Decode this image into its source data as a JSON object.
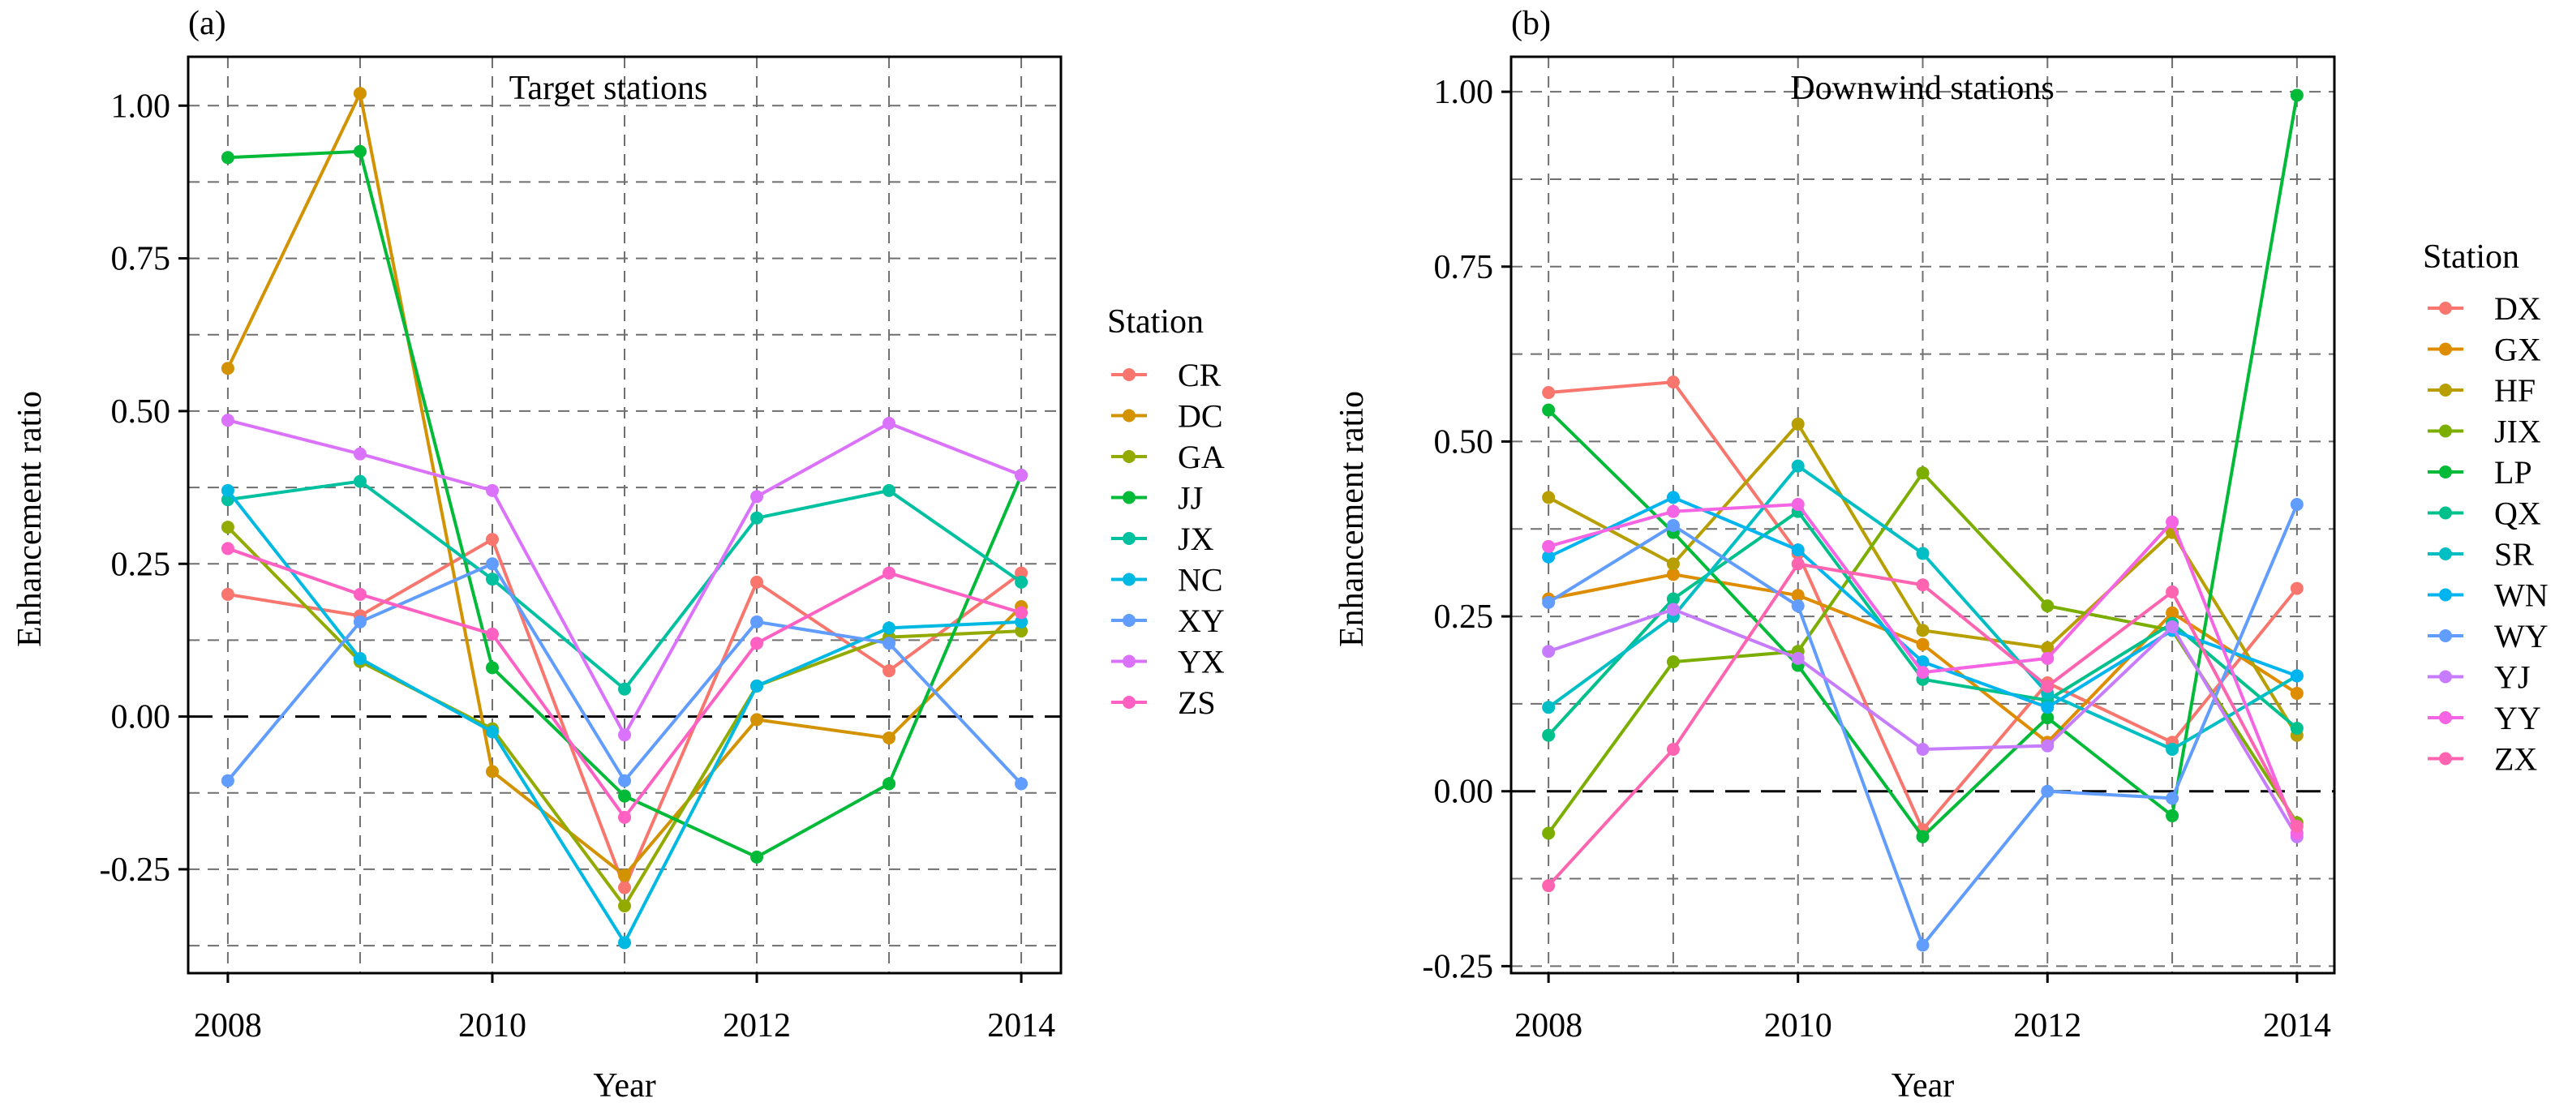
{
  "chart_data": [
    {
      "type": "line",
      "panel_label": "(a)",
      "title": "Target stations",
      "xlabel": "Year",
      "ylabel": "Enhancement ratio",
      "x": [
        2008,
        2009,
        2010,
        2011,
        2012,
        2013,
        2014
      ],
      "x_ticks": [
        "2008",
        "2010",
        "2012",
        "2014"
      ],
      "ylim": [
        -0.42,
        1.08
      ],
      "y_ticks": [
        "-0.25",
        "0.00",
        "0.25",
        "0.50",
        "0.75",
        "1.00"
      ],
      "grid": true,
      "reference_line": 0,
      "legend_title": "Station",
      "legend_position": "right",
      "series": [
        {
          "name": "CR",
          "color": "#F8766D",
          "values": [
            0.2,
            0.165,
            0.29,
            -0.28,
            0.22,
            0.075,
            0.235
          ]
        },
        {
          "name": "DC",
          "color": "#D39200",
          "values": [
            0.57,
            1.02,
            -0.09,
            -0.26,
            -0.005,
            -0.035,
            0.18
          ]
        },
        {
          "name": "GA",
          "color": "#93AA00",
          "values": [
            0.31,
            0.09,
            -0.02,
            -0.31,
            0.05,
            0.13,
            0.14
          ]
        },
        {
          "name": "JJ",
          "color": "#00BA38",
          "values": [
            0.915,
            0.925,
            0.08,
            -0.13,
            -0.23,
            -0.11,
            0.395
          ]
        },
        {
          "name": "JX",
          "color": "#00C19F",
          "values": [
            0.355,
            0.385,
            0.225,
            0.045,
            0.325,
            0.37,
            0.22
          ]
        },
        {
          "name": "NC",
          "color": "#00B9E3",
          "values": [
            0.37,
            0.095,
            -0.025,
            -0.37,
            0.05,
            0.145,
            0.155
          ]
        },
        {
          "name": "XY",
          "color": "#619CFF",
          "values": [
            -0.105,
            0.155,
            0.25,
            -0.105,
            0.155,
            0.12,
            -0.11
          ]
        },
        {
          "name": "YX",
          "color": "#DB72FB",
          "values": [
            0.485,
            0.43,
            0.37,
            -0.03,
            0.36,
            0.48,
            0.395
          ]
        },
        {
          "name": "ZS",
          "color": "#FF61C3",
          "values": [
            0.275,
            0.2,
            0.135,
            -0.165,
            0.12,
            0.235,
            0.17
          ]
        }
      ]
    },
    {
      "type": "line",
      "panel_label": "(b)",
      "title": "Downwind stations",
      "xlabel": "Year",
      "ylabel": "Enhancement ratio",
      "x": [
        2008,
        2009,
        2010,
        2011,
        2012,
        2013,
        2014
      ],
      "x_ticks": [
        "2008",
        "2010",
        "2012",
        "2014"
      ],
      "ylim": [
        -0.26,
        1.05
      ],
      "y_ticks": [
        "-0.25",
        "0.00",
        "0.25",
        "0.50",
        "0.75",
        "1.00"
      ],
      "grid": true,
      "reference_line": 0,
      "legend_title": "Station",
      "legend_position": "right",
      "series": [
        {
          "name": "DX",
          "color": "#F8766D",
          "values": [
            0.57,
            0.585,
            0.34,
            -0.055,
            0.155,
            0.07,
            0.29
          ]
        },
        {
          "name": "GX",
          "color": "#DE8C00",
          "values": [
            0.275,
            0.31,
            0.28,
            0.21,
            0.07,
            0.255,
            0.14
          ]
        },
        {
          "name": "HF",
          "color": "#B79F00",
          "values": [
            0.42,
            0.325,
            0.525,
            0.23,
            0.205,
            0.37,
            0.08
          ]
        },
        {
          "name": "JIX",
          "color": "#7CAE00",
          "values": [
            -0.06,
            0.185,
            0.2,
            0.455,
            0.265,
            0.23,
            -0.045
          ]
        },
        {
          "name": "LP",
          "color": "#00BA38",
          "values": [
            0.545,
            0.37,
            0.18,
            -0.065,
            0.105,
            -0.035,
            0.995
          ]
        },
        {
          "name": "QX",
          "color": "#00C08B",
          "values": [
            0.08,
            0.275,
            0.4,
            0.16,
            0.13,
            0.24,
            0.09
          ]
        },
        {
          "name": "SR",
          "color": "#00BFC4",
          "values": [
            0.12,
            0.25,
            0.465,
            0.34,
            0.14,
            0.06,
            0.165
          ]
        },
        {
          "name": "WN",
          "color": "#00B4F0",
          "values": [
            0.335,
            0.42,
            0.345,
            0.185,
            0.12,
            0.23,
            0.165
          ]
        },
        {
          "name": "WY",
          "color": "#619CFF",
          "values": [
            0.27,
            0.38,
            0.265,
            -0.22,
            0.0,
            -0.01,
            0.41
          ]
        },
        {
          "name": "YJ",
          "color": "#C77CFF",
          "values": [
            0.2,
            0.26,
            0.19,
            0.06,
            0.065,
            0.235,
            -0.065
          ]
        },
        {
          "name": "YY",
          "color": "#F564E3",
          "values": [
            0.35,
            0.4,
            0.41,
            0.17,
            0.19,
            0.385,
            -0.06
          ]
        },
        {
          "name": "ZX",
          "color": "#FF64B0",
          "values": [
            -0.135,
            0.06,
            0.325,
            0.295,
            0.15,
            0.285,
            -0.05
          ]
        }
      ]
    }
  ]
}
